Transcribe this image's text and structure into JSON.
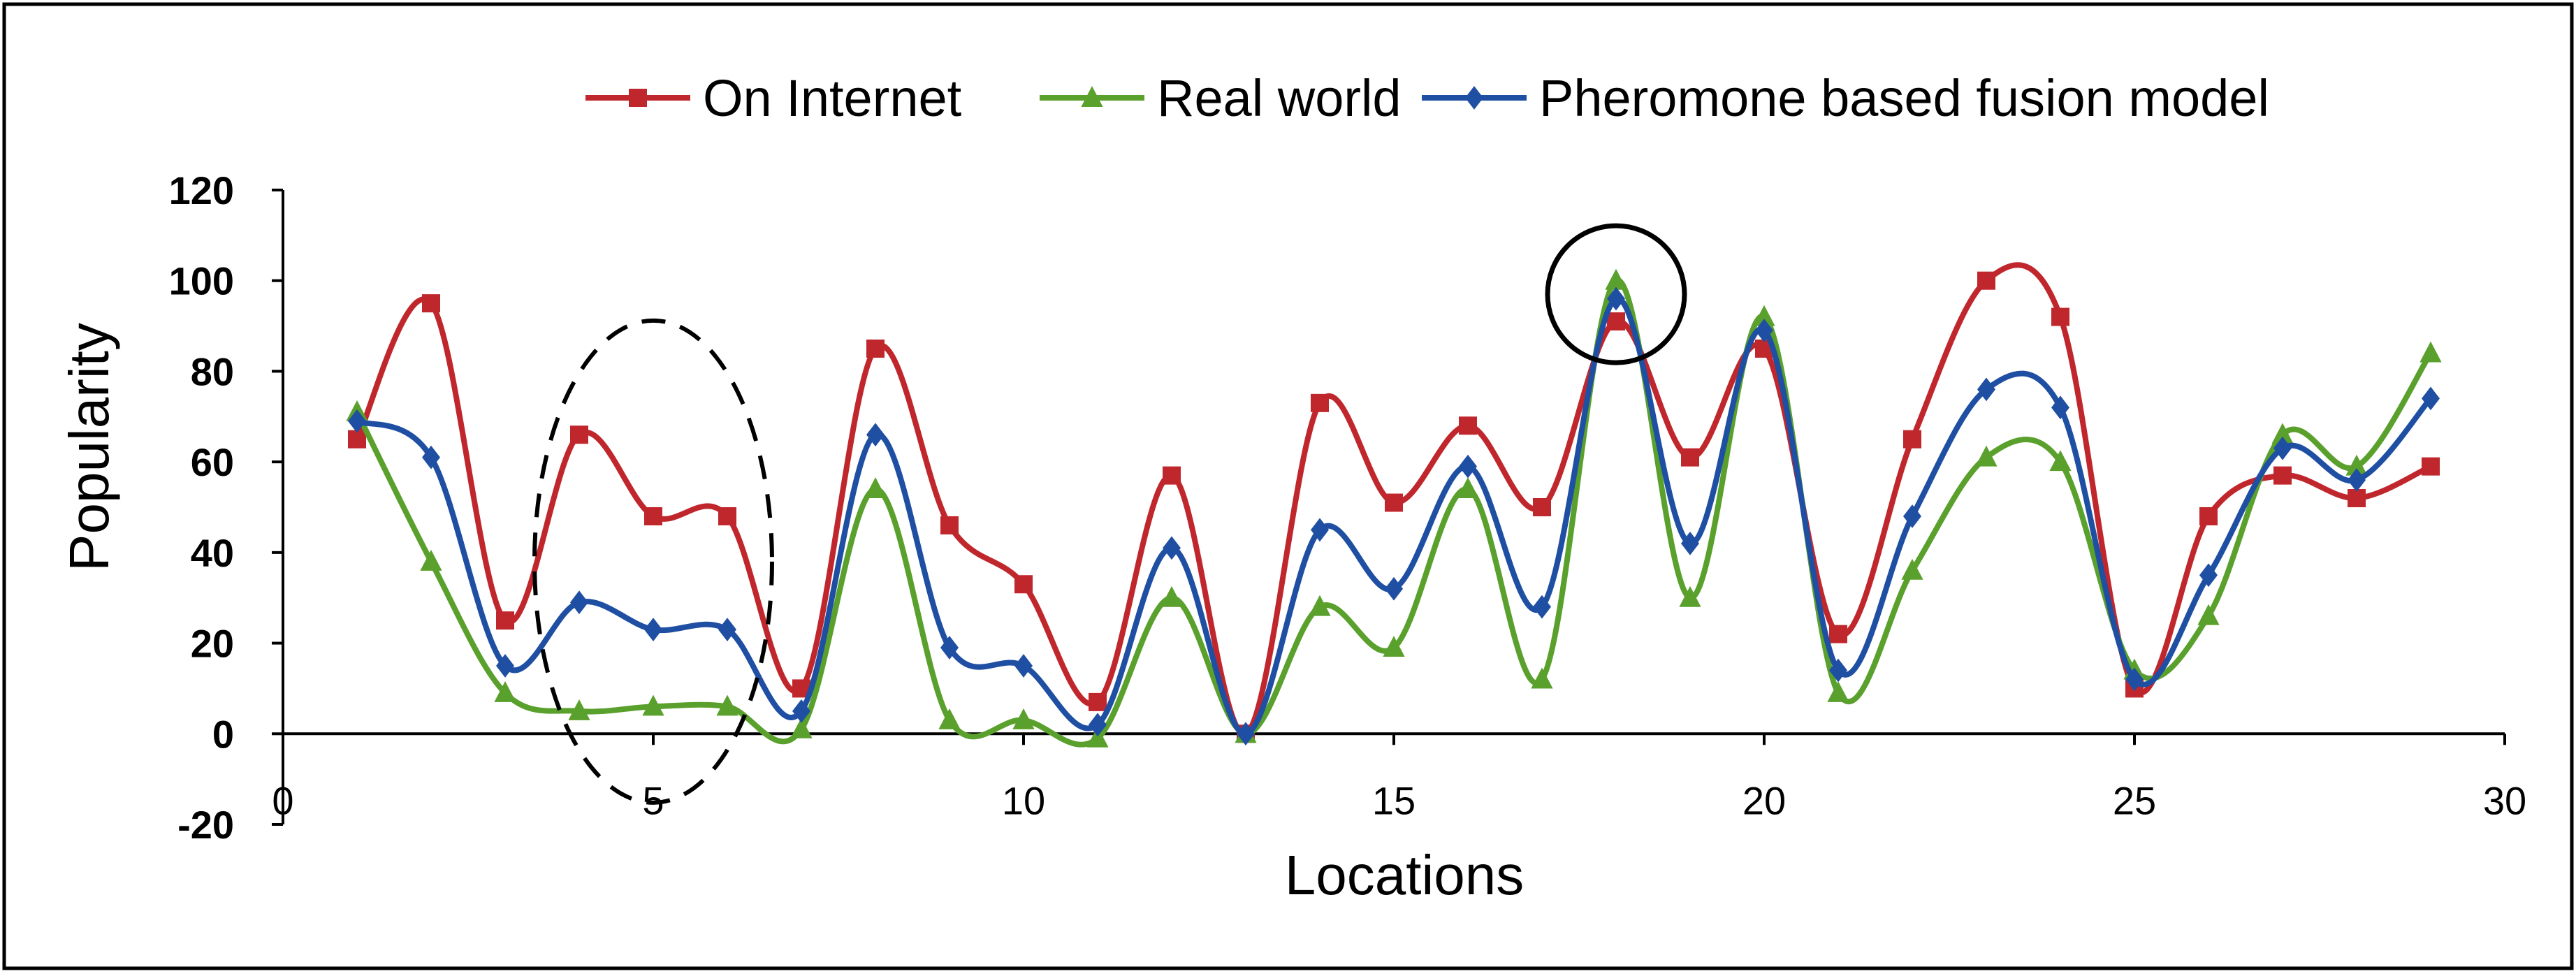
{
  "chart_data": {
    "type": "line",
    "title": "",
    "xlabel": "Locations",
    "ylabel": "Popularity",
    "xlim": [
      0,
      30
    ],
    "ylim": [
      -20,
      120
    ],
    "x_ticks": [
      0,
      5,
      10,
      15,
      20,
      25,
      30
    ],
    "y_ticks": [
      -20,
      0,
      20,
      40,
      60,
      80,
      100,
      120
    ],
    "grid": false,
    "smooth": true,
    "legend_position": "top",
    "x": [
      1,
      2,
      3,
      4,
      5,
      6,
      7,
      8,
      9,
      10,
      11,
      12,
      13,
      14,
      15,
      16,
      17,
      18,
      19,
      20,
      21,
      22,
      23,
      24,
      25,
      26,
      27,
      28,
      29
    ],
    "series": [
      {
        "name": "On Internet",
        "color": "#c0272d",
        "marker": "square",
        "values": [
          65,
          95,
          25,
          66,
          48,
          48,
          10,
          85,
          46,
          33,
          7,
          57,
          0,
          73,
          51,
          68,
          50,
          91,
          61,
          85,
          22,
          65,
          100,
          92,
          10,
          48,
          57,
          52,
          59
        ]
      },
      {
        "name": "Real world",
        "color": "#5aa02c",
        "marker": "triangle",
        "values": [
          71,
          38,
          9,
          5,
          6,
          6,
          1,
          54,
          3,
          3,
          -1,
          30,
          0,
          28,
          19,
          54,
          12,
          100,
          30,
          92,
          9,
          36,
          61,
          60,
          14,
          26,
          66,
          59,
          84
        ]
      },
      {
        "name": "Pheromone based fusion model",
        "color": "#1f4fa3",
        "marker": "diamond",
        "values": [
          69,
          61,
          15,
          29,
          23,
          23,
          5,
          66,
          19,
          15,
          2,
          41,
          0,
          45,
          32,
          59,
          28,
          96,
          42,
          89,
          14,
          48,
          76,
          72,
          12,
          35,
          63,
          56,
          74
        ]
      }
    ],
    "annotations": [
      {
        "shape": "dashed-ellipse",
        "around_x": 5
      },
      {
        "shape": "circle",
        "around_x": 18
      }
    ]
  }
}
